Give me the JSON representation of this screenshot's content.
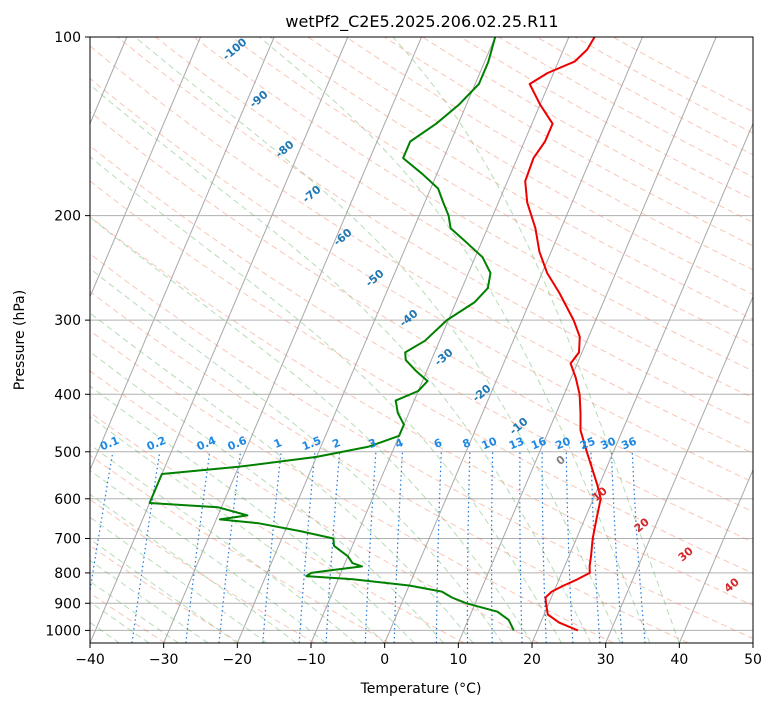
{
  "chart_data": {
    "type": "line",
    "subtype": "skew-T log-P diagram",
    "title": "wetPf2_C2E5.2025.206.02.25.R11",
    "xlabel": "Temperature (°C)",
    "ylabel": "Pressure (hPa)",
    "xlim": [
      -40,
      50
    ],
    "ylim": [
      1050,
      100
    ],
    "yscale": "log",
    "grid": true,
    "x_ticks": [
      "−40",
      "−30",
      "−20",
      "−10",
      "0",
      "10",
      "20",
      "30",
      "40",
      "50"
    ],
    "y_ticks": [
      "100",
      "200",
      "300",
      "400",
      "500",
      "600",
      "700",
      "800",
      "900",
      "1000"
    ],
    "isotherm_labels": [
      "-100",
      "-90",
      "-80",
      "-70",
      "-60",
      "-50",
      "-40",
      "-30",
      "-20",
      "-10",
      "0",
      "10",
      "20",
      "30",
      "40"
    ],
    "mixing_ratio_labels": [
      "0.1",
      "0.2",
      "0.4",
      "0.6",
      "1",
      "1.5",
      "2",
      "3",
      "4",
      "6",
      "8",
      "10",
      "13",
      "16",
      "20",
      "25",
      "30",
      "36"
    ],
    "series": [
      {
        "color": "#ee0000",
        "points": [
          [
            1000,
            25.5
          ],
          [
            970,
            22.5
          ],
          [
            940,
            20.5
          ],
          [
            900,
            19.6
          ],
          [
            880,
            19.2
          ],
          [
            860,
            19.7
          ],
          [
            840,
            21.0
          ],
          [
            820,
            22.5
          ],
          [
            800,
            23.8
          ],
          [
            780,
            23.4
          ],
          [
            750,
            23.0
          ],
          [
            700,
            22.2
          ],
          [
            650,
            21.6
          ],
          [
            600,
            21.0
          ],
          [
            570,
            19.8
          ],
          [
            540,
            18.4
          ],
          [
            500,
            16.4
          ],
          [
            460,
            14.3
          ],
          [
            430,
            13.3
          ],
          [
            400,
            12.1
          ],
          [
            375,
            10.6
          ],
          [
            355,
            9.1
          ],
          [
            340,
            9.6
          ],
          [
            320,
            8.8
          ],
          [
            300,
            7.0
          ],
          [
            270,
            3.5
          ],
          [
            250,
            0.7
          ],
          [
            230,
            -1.6
          ],
          [
            210,
            -3.5
          ],
          [
            190,
            -6.1
          ],
          [
            175,
            -7.6
          ],
          [
            160,
            -7.8
          ],
          [
            150,
            -7.2
          ],
          [
            140,
            -7.2
          ],
          [
            130,
            -10.0
          ],
          [
            120,
            -12.6
          ],
          [
            115,
            -10.8
          ],
          [
            110,
            -7.8
          ],
          [
            105,
            -6.8
          ],
          [
            100,
            -6.5
          ]
        ]
      },
      {
        "color": "#008000",
        "points": [
          [
            1000,
            16.8
          ],
          [
            960,
            15.5
          ],
          [
            930,
            13.5
          ],
          [
            900,
            8.8
          ],
          [
            880,
            6.5
          ],
          [
            860,
            4.8
          ],
          [
            840,
            0.0
          ],
          [
            820,
            -8.0
          ],
          [
            810,
            -14.5
          ],
          [
            800,
            -14.0
          ],
          [
            790,
            -11.0
          ],
          [
            780,
            -7.5
          ],
          [
            770,
            -9.0
          ],
          [
            750,
            -10.0
          ],
          [
            720,
            -12.5
          ],
          [
            700,
            -13.0
          ],
          [
            680,
            -18.0
          ],
          [
            660,
            -24.0
          ],
          [
            650,
            -29.5
          ],
          [
            640,
            -26.0
          ],
          [
            620,
            -30.5
          ],
          [
            610,
            -40.0
          ],
          [
            560,
            -40.0
          ],
          [
            545,
            -40.0
          ],
          [
            530,
            -30.0
          ],
          [
            510,
            -20.0
          ],
          [
            490,
            -13.5
          ],
          [
            470,
            -10.0
          ],
          [
            450,
            -10.0
          ],
          [
            430,
            -11.5
          ],
          [
            410,
            -12.5
          ],
          [
            395,
            -10.0
          ],
          [
            380,
            -9.3
          ],
          [
            365,
            -11.5
          ],
          [
            350,
            -13.5
          ],
          [
            340,
            -14.0
          ],
          [
            325,
            -12.0
          ],
          [
            300,
            -10.2
          ],
          [
            280,
            -7.5
          ],
          [
            265,
            -6.5
          ],
          [
            250,
            -7.0
          ],
          [
            235,
            -9.0
          ],
          [
            220,
            -12.5
          ],
          [
            210,
            -15.0
          ],
          [
            200,
            -16.0
          ],
          [
            190,
            -17.5
          ],
          [
            180,
            -19.0
          ],
          [
            170,
            -22.0
          ],
          [
            160,
            -25.5
          ],
          [
            150,
            -25.5
          ],
          [
            140,
            -23.0
          ],
          [
            130,
            -21.0
          ],
          [
            120,
            -19.5
          ],
          [
            110,
            -19.5
          ],
          [
            100,
            -20.0
          ]
        ]
      }
    ]
  }
}
